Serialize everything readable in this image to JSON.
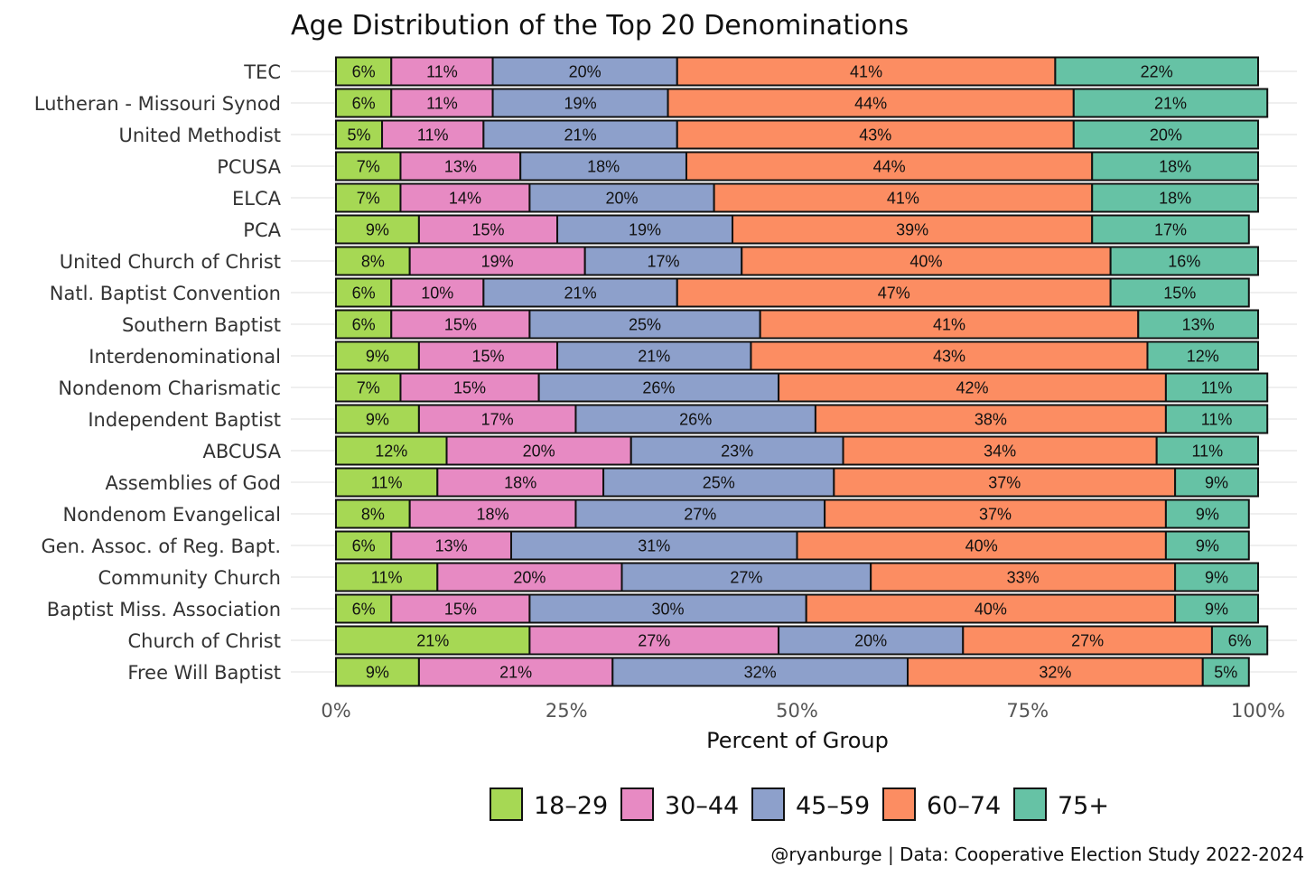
{
  "chart_data": {
    "type": "bar",
    "orientation": "horizontal",
    "stacked": true,
    "title": "Age Distribution of the Top 20 Denominations",
    "xlabel": "Percent of Group",
    "ylabel": "",
    "xlim": [
      0,
      100
    ],
    "x_ticks": [
      "0%",
      "25%",
      "50%",
      "75%",
      "100%"
    ],
    "grid": true,
    "legend_position": "bottom",
    "caption": "@ryanburge | Data: Cooperative Election Study 2022-2024",
    "categories": [
      "TEC",
      "Lutheran - Missouri Synod",
      "United Methodist",
      "PCUSA",
      "ELCA",
      "PCA",
      "United Church of Christ",
      "Natl. Baptist Convention",
      "Southern Baptist",
      "Interdenominational",
      "Nondenom Charismatic",
      "Independent Baptist",
      "ABCUSA",
      "Assemblies of God",
      "Nondenom Evangelical",
      "Gen. Assoc. of Reg. Bapt.",
      "Community Church",
      "Baptist Miss. Association",
      "Church of Christ",
      "Free Will Baptist"
    ],
    "series": [
      {
        "name": "18–29",
        "color": "#a6d854",
        "values": [
          6,
          6,
          5,
          7,
          7,
          9,
          8,
          6,
          6,
          9,
          7,
          9,
          12,
          11,
          8,
          6,
          11,
          6,
          21,
          9
        ]
      },
      {
        "name": "30–44",
        "color": "#e78ac3",
        "values": [
          11,
          11,
          11,
          13,
          14,
          15,
          19,
          10,
          15,
          15,
          15,
          17,
          20,
          18,
          18,
          13,
          20,
          15,
          27,
          21
        ]
      },
      {
        "name": "45–59",
        "color": "#8da0cb",
        "values": [
          20,
          19,
          21,
          18,
          20,
          19,
          17,
          21,
          25,
          21,
          26,
          26,
          23,
          25,
          27,
          31,
          27,
          30,
          20,
          32
        ]
      },
      {
        "name": "60–74",
        "color": "#fc8d62",
        "values": [
          41,
          44,
          43,
          44,
          41,
          39,
          40,
          47,
          41,
          43,
          42,
          38,
          34,
          37,
          37,
          40,
          33,
          40,
          27,
          32
        ]
      },
      {
        "name": "75+",
        "color": "#66c2a5",
        "values": [
          22,
          21,
          20,
          18,
          18,
          17,
          16,
          15,
          13,
          12,
          11,
          11,
          11,
          9,
          9,
          9,
          9,
          9,
          6,
          5
        ]
      }
    ]
  }
}
